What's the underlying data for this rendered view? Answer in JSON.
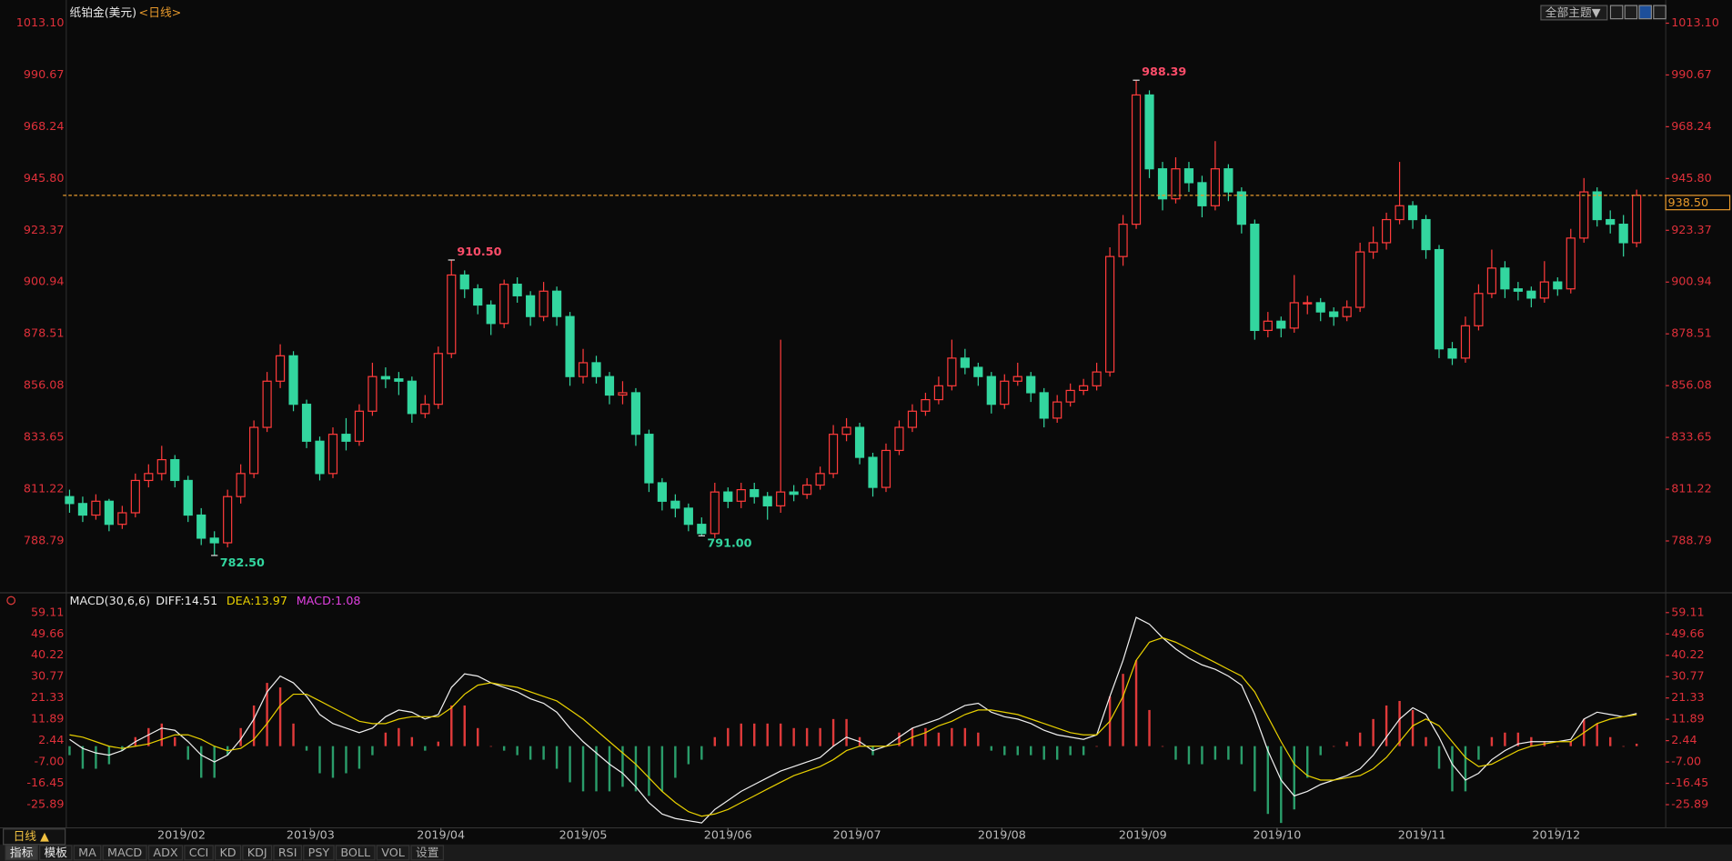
{
  "header": {
    "theme_menu": "全部主题▼"
  },
  "toolbar": {
    "period": "日线 ▲",
    "tabs": [
      "指标",
      "模板",
      "MA",
      "MACD",
      "ADX",
      "CCI",
      "KD",
      "KDJ",
      "RSI",
      "PSY",
      "BOLL",
      "VOL",
      "设置"
    ]
  },
  "chart_data": [
    {
      "type": "candlestick",
      "title": "纸铂金(美元)",
      "subtitle": "<日线>",
      "up_color": "#ff3b3b",
      "down_color": "#33d69f",
      "xlim": [
        -0.5,
        119.7
      ],
      "ylim": [
        767.3,
        1020.75
      ],
      "yticks": [
        {
          "value": 1013.1,
          "label": "1013.10"
        },
        990.67,
        968.24,
        {
          "value": 945.8,
          "label": "945.80"
        },
        923.37,
        900.94,
        878.51,
        856.08,
        833.65,
        811.22,
        788.79
      ],
      "candles": [
        [
          808,
          811,
          801,
          805
        ],
        [
          805,
          808,
          797,
          800
        ],
        [
          800,
          809,
          798,
          806
        ],
        [
          806,
          807,
          793,
          796
        ],
        [
          796,
          804,
          794,
          801
        ],
        [
          801,
          818,
          799,
          815
        ],
        [
          815,
          822,
          812,
          818
        ],
        [
          818,
          830,
          815,
          824
        ],
        [
          824,
          826,
          812,
          815
        ],
        [
          815,
          817,
          797,
          800
        ],
        [
          800,
          803,
          787,
          790
        ],
        [
          790,
          793,
          782.5,
          788
        ],
        [
          788,
          811,
          786,
          808
        ],
        [
          808,
          822,
          805,
          818
        ],
        [
          818,
          841,
          816,
          838
        ],
        [
          838,
          862,
          836,
          858
        ],
        [
          858,
          874,
          855,
          869
        ],
        [
          869,
          871,
          845,
          848
        ],
        [
          848,
          850,
          829,
          832
        ],
        [
          832,
          834,
          815,
          818
        ],
        [
          818,
          838,
          816,
          835
        ],
        [
          835,
          842,
          828,
          832
        ],
        [
          832,
          848,
          830,
          845
        ],
        [
          845,
          866,
          843,
          860
        ],
        [
          860,
          864,
          855,
          859
        ],
        [
          859,
          862,
          852,
          858
        ],
        [
          858,
          860,
          840,
          844
        ],
        [
          844,
          852,
          842,
          848
        ],
        [
          848,
          873,
          846,
          870
        ],
        [
          870,
          910.5,
          868,
          904
        ],
        [
          904,
          906,
          894,
          898
        ],
        [
          898,
          900,
          887,
          891
        ],
        [
          891,
          893,
          878,
          883
        ],
        [
          883,
          902,
          881,
          900
        ],
        [
          900,
          903,
          892,
          895
        ],
        [
          895,
          897,
          882,
          886
        ],
        [
          886,
          901,
          884,
          897
        ],
        [
          897,
          899,
          882,
          886
        ],
        [
          886,
          888,
          856,
          860
        ],
        [
          860,
          872,
          857,
          866
        ],
        [
          866,
          869,
          857,
          860
        ],
        [
          860,
          862,
          848,
          852
        ],
        [
          852,
          858,
          848,
          853
        ],
        [
          853,
          855,
          830,
          835
        ],
        [
          835,
          837,
          810,
          814
        ],
        [
          814,
          816,
          802,
          806
        ],
        [
          806,
          809,
          799,
          803
        ],
        [
          803,
          805,
          793,
          796
        ],
        [
          796,
          799,
          791,
          792
        ],
        [
          792,
          814,
          790,
          810
        ],
        [
          810,
          812,
          803,
          806
        ],
        [
          806,
          814,
          803,
          811
        ],
        [
          811,
          814,
          805,
          808
        ],
        [
          808,
          810,
          798,
          804
        ],
        [
          804,
          876,
          801,
          810
        ],
        [
          810,
          813,
          806,
          809
        ],
        [
          809,
          816,
          807,
          813
        ],
        [
          813,
          821,
          811,
          818
        ],
        [
          818,
          839,
          816,
          835
        ],
        [
          835,
          842,
          832,
          838
        ],
        [
          838,
          840,
          822,
          825
        ],
        [
          825,
          827,
          808,
          812
        ],
        [
          812,
          831,
          810,
          828
        ],
        [
          828,
          841,
          826,
          838
        ],
        [
          838,
          848,
          836,
          845
        ],
        [
          845,
          853,
          843,
          850
        ],
        [
          850,
          860,
          848,
          856
        ],
        [
          856,
          876,
          854,
          868
        ],
        [
          868,
          872,
          861,
          864
        ],
        [
          864,
          866,
          856,
          860
        ],
        [
          860,
          862,
          844,
          848
        ],
        [
          848,
          861,
          846,
          858
        ],
        [
          858,
          866,
          856,
          860
        ],
        [
          860,
          862,
          849,
          853
        ],
        [
          853,
          855,
          838,
          842
        ],
        [
          842,
          852,
          840,
          849
        ],
        [
          849,
          857,
          847,
          854
        ],
        [
          854,
          859,
          852,
          856
        ],
        [
          856,
          866,
          854,
          862
        ],
        [
          862,
          916,
          860,
          912
        ],
        [
          912,
          930,
          908,
          926
        ],
        [
          926,
          988.39,
          924,
          982
        ],
        [
          982,
          984,
          946,
          950
        ],
        [
          950,
          953,
          932,
          937
        ],
        [
          937,
          955,
          935,
          950
        ],
        [
          950,
          953,
          940,
          944
        ],
        [
          944,
          947,
          929,
          934
        ],
        [
          934,
          962,
          932,
          950
        ],
        [
          950,
          952,
          936,
          940
        ],
        [
          940,
          942,
          922,
          926
        ],
        [
          926,
          928,
          876,
          880
        ],
        [
          880,
          888,
          877,
          884
        ],
        [
          884,
          886,
          877,
          881
        ],
        [
          881,
          904,
          879,
          892
        ],
        [
          892,
          895,
          887,
          892
        ],
        [
          892,
          894,
          884,
          888
        ],
        [
          888,
          890,
          882,
          886
        ],
        [
          886,
          893,
          884,
          890
        ],
        [
          890,
          918,
          888,
          914
        ],
        [
          914,
          925,
          911,
          918
        ],
        [
          918,
          931,
          915,
          928
        ],
        [
          928,
          953,
          926,
          934
        ],
        [
          934,
          936,
          924,
          928
        ],
        [
          928,
          930,
          911,
          915
        ],
        [
          915,
          917,
          868,
          872
        ],
        [
          872,
          875,
          865,
          868
        ],
        [
          868,
          886,
          866,
          882
        ],
        [
          882,
          900,
          880,
          896
        ],
        [
          896,
          915,
          894,
          907
        ],
        [
          907,
          910,
          894,
          898
        ],
        [
          898,
          901,
          893,
          897
        ],
        [
          897,
          899,
          890,
          894
        ],
        [
          894,
          910,
          892,
          901
        ],
        [
          901,
          903,
          895,
          898
        ],
        [
          898,
          924,
          896,
          920
        ],
        [
          920,
          946,
          918,
          940
        ],
        [
          940,
          942,
          925,
          928
        ],
        [
          928,
          932,
          922,
          926
        ],
        [
          926,
          930,
          912,
          918
        ],
        [
          918,
          941,
          916,
          938.5
        ]
      ],
      "annotations": [
        988.39,
        {
          "value": 910.5,
          "label": "910.50"
        },
        {
          "value": 782.5,
          "label": "782.50"
        },
        {
          "value": 791,
          "label": "791.00"
        }
      ],
      "last_price": {
        "value": 938.5,
        "label": "938.50"
      },
      "last_price_color": "#e89a2c"
    },
    {
      "type": "macd",
      "title": "MACD(30,6,6)",
      "up_color": "#e03a3a",
      "down_color": "#2a9d6a",
      "xlim": [
        -0.5,
        119.7
      ],
      "ylim": [
        -35.2,
        63
      ],
      "yticks": [
        59.11,
        49.66,
        40.22,
        30.77,
        21.33,
        11.89,
        2.44,
        {
          "value": -7,
          "label": "-7.00"
        },
        -16.45,
        -25.89
      ],
      "xticks": [
        {
          "value": 8.5,
          "label": "2019/02"
        },
        {
          "value": 18.3,
          "label": "2019/03"
        },
        {
          "value": 28.2,
          "label": "2019/04"
        },
        {
          "value": 39,
          "label": "2019/05"
        },
        {
          "value": 50,
          "label": "2019/06"
        },
        {
          "value": 59.8,
          "label": "2019/07"
        },
        {
          "value": 70.8,
          "label": "2019/08"
        },
        {
          "value": 81.5,
          "label": "2019/09"
        },
        {
          "value": 91.7,
          "label": "2019/10"
        },
        {
          "value": 102.7,
          "label": "2019/11"
        },
        {
          "value": 112.9,
          "label": "2019/12"
        }
      ],
      "series": [
        {
          "name": "DIFF:14.51",
          "kind": "line",
          "color": "#f0f0f0",
          "values": [
            3,
            -1,
            -3,
            -4,
            -2,
            2,
            5,
            8,
            7,
            2,
            -4,
            -7,
            -4,
            3,
            12,
            24,
            31,
            28,
            22,
            14,
            10,
            8,
            6,
            8,
            13,
            16,
            15,
            12,
            14,
            26,
            32,
            31,
            28,
            26,
            24,
            21,
            19,
            15,
            8,
            2,
            -3,
            -8,
            -12,
            -18,
            -25,
            -30,
            -32,
            -33,
            -34,
            -28,
            -24,
            -20,
            -17,
            -14,
            -11,
            -9,
            -7,
            -5,
            0,
            4,
            2,
            -2,
            0,
            4,
            8,
            10,
            12,
            15,
            18,
            19,
            15,
            13,
            12,
            10,
            7,
            5,
            4,
            3,
            5,
            22,
            38,
            57,
            54,
            48,
            43,
            39,
            36,
            34,
            31,
            27,
            14,
            -2,
            -15,
            -22,
            -20,
            -17,
            -15,
            -13,
            -10,
            -4,
            4,
            12,
            17,
            14,
            4,
            -8,
            -15,
            -12,
            -6,
            -2,
            1,
            2,
            2,
            2,
            3,
            12,
            15,
            14,
            13,
            14.51
          ]
        },
        {
          "name": "DEA:13.97",
          "kind": "line",
          "color": "#e8d000",
          "values": [
            5,
            4,
            2,
            0,
            -1,
            0,
            1,
            3,
            5,
            5,
            3,
            0,
            -2,
            -1,
            3,
            10,
            18,
            23,
            23,
            20,
            17,
            14,
            11,
            10,
            10,
            12,
            13,
            13,
            13,
            17,
            23,
            27,
            28,
            27,
            26,
            24,
            22,
            20,
            16,
            12,
            7,
            2,
            -3,
            -8,
            -14,
            -20,
            -25,
            -29,
            -31,
            -30,
            -28,
            -25,
            -22,
            -19,
            -16,
            -13,
            -11,
            -9,
            -6,
            -2,
            0,
            0,
            0,
            1,
            4,
            6,
            9,
            11,
            14,
            16,
            16,
            15,
            14,
            12,
            10,
            8,
            6,
            5,
            5,
            11,
            22,
            38,
            46,
            48,
            46,
            43,
            40,
            37,
            34,
            31,
            24,
            13,
            2,
            -8,
            -13,
            -15,
            -15,
            -14,
            -13,
            -10,
            -5,
            2,
            9,
            12,
            9,
            2,
            -5,
            -9,
            -8,
            -5,
            -2,
            0,
            1,
            2,
            2,
            6,
            10,
            12,
            13,
            13.97
          ]
        },
        {
          "name": "MACD:1.08",
          "kind": "bar",
          "color": "#e040e0",
          "values": [
            -4,
            -10,
            -10,
            -8,
            -2,
            4,
            8,
            10,
            4,
            -6,
            -14,
            -14,
            -4,
            8,
            18,
            28,
            26,
            10,
            -2,
            -12,
            -14,
            -12,
            -10,
            -4,
            6,
            8,
            4,
            -2,
            2,
            18,
            18,
            8,
            0,
            -2,
            -4,
            -6,
            -6,
            -10,
            -16,
            -20,
            -20,
            -20,
            -18,
            -20,
            -22,
            -20,
            -14,
            -8,
            -6,
            4,
            8,
            10,
            10,
            10,
            10,
            8,
            8,
            8,
            12,
            12,
            4,
            -4,
            0,
            6,
            8,
            8,
            6,
            8,
            8,
            6,
            -2,
            -4,
            -4,
            -4,
            -6,
            -6,
            -4,
            -4,
            0,
            22,
            32,
            38,
            16,
            0,
            -6,
            -8,
            -8,
            -6,
            -6,
            -8,
            -20,
            -30,
            -34,
            -28,
            -14,
            -4,
            0,
            2,
            6,
            12,
            18,
            20,
            16,
            4,
            -10,
            -20,
            -20,
            -6,
            4,
            6,
            6,
            4,
            2,
            0,
            2,
            12,
            10,
            4,
            0,
            1.08
          ]
        }
      ]
    }
  ]
}
